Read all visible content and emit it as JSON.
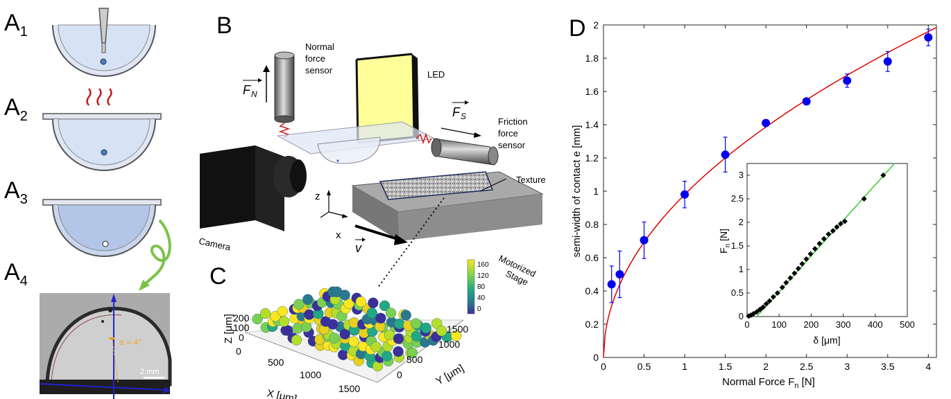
{
  "panels": {
    "a1": "A",
    "a1_sub": "1",
    "a2": "A",
    "a2_sub": "2",
    "a3": "A",
    "a3_sub": "3",
    "a4": "A",
    "a4_sub": "4",
    "b": "B",
    "c": "C",
    "d": "D"
  },
  "panel_a4": {
    "angle_label": "α = 4°",
    "scale_label": "2 mm"
  },
  "panel_b": {
    "normal_sensor": [
      "Normal",
      "force",
      "sensor"
    ],
    "led": "LED",
    "friction_sensor": [
      "Friction",
      "force",
      "sensor"
    ],
    "texture": "Texture",
    "camera": "Camera",
    "stage": [
      "Motorized",
      "Stage"
    ],
    "axis_z": "z",
    "axis_x": "x",
    "fn_symbol": "F",
    "fn_sub": "N",
    "fs_symbol": "F",
    "fs_sub": "S",
    "v_symbol": "v"
  },
  "panel_c": {
    "colorbar_ticks": [
      "160",
      "120",
      "80",
      "40",
      "0"
    ],
    "z_label": "Z [μm]",
    "z_ticks": [
      "200",
      "100",
      "0"
    ],
    "x_label": "X [μm]",
    "x_ticks": [
      "0",
      "500",
      "1000",
      "1500"
    ],
    "y_label": "Y [μm]",
    "y_ticks": [
      "0",
      "500",
      "1000",
      "1500"
    ]
  },
  "chart_data": [
    {
      "type": "scatter",
      "panel": "D-main",
      "xlabel": "Normal Force F",
      "xlabel_sub": "n",
      "xlabel_unit": "[N]",
      "ylabel": "semi-width of contact e [mm]",
      "xlim": [
        0,
        4.1
      ],
      "ylim": [
        0,
        2
      ],
      "x_ticks": [
        0,
        0.5,
        1,
        1.5,
        2,
        2.5,
        3,
        3.5,
        4
      ],
      "y_ticks": [
        0,
        0.2,
        0.4,
        0.6,
        0.8,
        1,
        1.2,
        1.4,
        1.6,
        1.8,
        2
      ],
      "series": [
        {
          "marker": "circle",
          "color": "#0000ee",
          "points": [
            {
              "x": 0.1,
              "y": 0.44,
              "err": 0.11
            },
            {
              "x": 0.2,
              "y": 0.5,
              "err": 0.14
            },
            {
              "x": 0.5,
              "y": 0.705,
              "err": 0.11
            },
            {
              "x": 1.0,
              "y": 0.98,
              "err": 0.08
            },
            {
              "x": 1.5,
              "y": 1.22,
              "err": 0.105
            },
            {
              "x": 2.0,
              "y": 1.41,
              "err": 0.01
            },
            {
              "x": 2.5,
              "y": 1.54,
              "err": 0.02
            },
            {
              "x": 3.0,
              "y": 1.665,
              "err": 0.04
            },
            {
              "x": 3.5,
              "y": 1.78,
              "err": 0.06
            },
            {
              "x": 4.0,
              "y": 1.925,
              "err": 0.05
            }
          ]
        }
      ],
      "fit": {
        "color": "#e00000",
        "type": "power",
        "a": 0.98,
        "b": 0.5
      }
    },
    {
      "type": "scatter",
      "panel": "D-inset",
      "xlabel": "δ [μm]",
      "ylabel": "F",
      "ylabel_sub": "n",
      "ylabel_unit": "[N]",
      "xlim": [
        0,
        500
      ],
      "ylim": [
        0,
        3.25
      ],
      "x_ticks": [
        0,
        100,
        200,
        300,
        400,
        500
      ],
      "y_ticks": [
        0,
        0.5,
        1,
        1.5,
        2,
        2.5,
        3
      ],
      "series": [
        {
          "marker": "diamond",
          "color": "#000000",
          "points": [
            [
              5,
              0.01
            ],
            [
              12,
              0.03
            ],
            [
              20,
              0.06
            ],
            [
              30,
              0.1
            ],
            [
              40,
              0.15
            ],
            [
              50,
              0.2
            ],
            [
              60,
              0.27
            ],
            [
              70,
              0.33
            ],
            [
              82,
              0.42
            ],
            [
              95,
              0.5
            ],
            [
              110,
              0.62
            ],
            [
              122,
              0.72
            ],
            [
              135,
              0.82
            ],
            [
              148,
              0.92
            ],
            [
              160,
              1.02
            ],
            [
              172,
              1.12
            ],
            [
              185,
              1.22
            ],
            [
              198,
              1.33
            ],
            [
              212,
              1.44
            ],
            [
              226,
              1.55
            ],
            [
              240,
              1.65
            ],
            [
              254,
              1.75
            ],
            [
              268,
              1.82
            ],
            [
              280,
              1.9
            ],
            [
              292,
              1.97
            ],
            [
              305,
              2.02
            ],
            [
              365,
              2.5
            ],
            [
              425,
              3.0
            ]
          ]
        }
      ],
      "fit": {
        "color": "#33cc33",
        "x": [
          30,
          460
        ],
        "y": [
          0,
          3.25
        ]
      }
    }
  ]
}
